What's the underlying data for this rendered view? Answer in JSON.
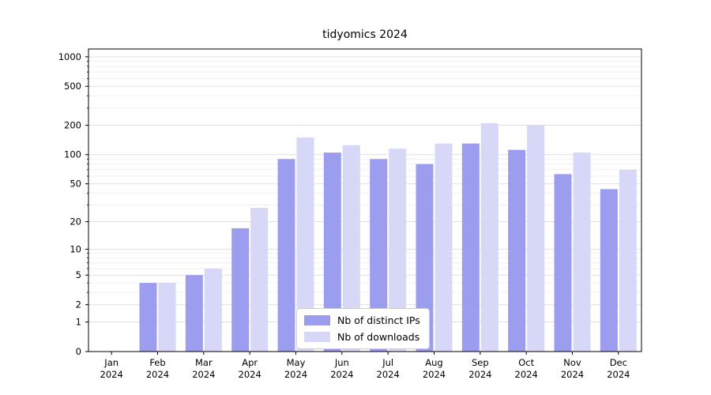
{
  "chart_data": {
    "type": "bar",
    "title": "tidyomics 2024",
    "categories": [
      "Jan",
      "Feb",
      "Mar",
      "Apr",
      "May",
      "Jun",
      "Jul",
      "Aug",
      "Sep",
      "Oct",
      "Nov",
      "Dec"
    ],
    "year_label": "2024",
    "series": [
      {
        "name": "Nb of distinct IPs",
        "color": "#9d9df0",
        "values": [
          0,
          4,
          5,
          17,
          90,
          105,
          90,
          80,
          130,
          112,
          63,
          44
        ]
      },
      {
        "name": "Nb of downloads",
        "color": "#d7d7f8",
        "values": [
          0,
          4,
          6,
          28,
          150,
          125,
          115,
          130,
          210,
          200,
          105,
          70
        ]
      }
    ],
    "yscale": "log1p",
    "yticks": [
      0,
      1,
      2,
      5,
      10,
      20,
      50,
      100,
      200,
      500,
      1000
    ],
    "minor_yticks": [
      3,
      4,
      6,
      7,
      8,
      9,
      30,
      40,
      60,
      70,
      80,
      90,
      300,
      400,
      600,
      700,
      800,
      900
    ],
    "ylim": [
      0,
      1200
    ],
    "xlabel": "",
    "ylabel": "",
    "grid": "horizontal",
    "legend_position": "bottom-center"
  },
  "colors": {
    "major_grid": "#e0e0e0",
    "minor_grid": "#f0f0f0",
    "axis": "#000000",
    "background": "#ffffff"
  }
}
